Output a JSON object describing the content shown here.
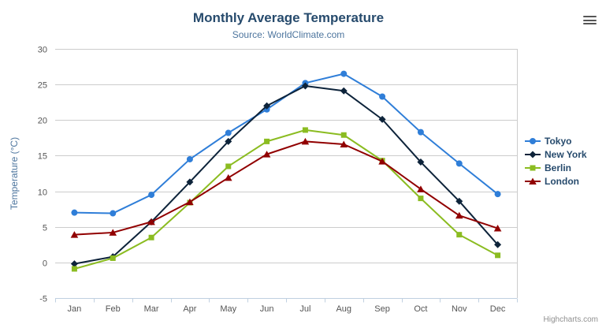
{
  "chart_data": {
    "type": "line",
    "title": "Monthly Average Temperature",
    "subtitle": "Source: WorldClimate.com",
    "categories": [
      "Jan",
      "Feb",
      "Mar",
      "Apr",
      "May",
      "Jun",
      "Jul",
      "Aug",
      "Sep",
      "Oct",
      "Nov",
      "Dec"
    ],
    "xlabel": "",
    "ylabel": "Temperature (°C)",
    "ylim": [
      -5,
      30
    ],
    "ytick_step": 5,
    "grid": true,
    "legend_position": "right",
    "series": [
      {
        "name": "Tokyo",
        "color": "#2f7ed8",
        "marker": "circle",
        "values": [
          7.0,
          6.9,
          9.5,
          14.5,
          18.2,
          21.5,
          25.2,
          26.5,
          23.3,
          18.3,
          13.9,
          9.6
        ]
      },
      {
        "name": "New York",
        "color": "#0d233a",
        "marker": "diamond",
        "values": [
          -0.2,
          0.8,
          5.7,
          11.3,
          17.0,
          22.0,
          24.8,
          24.1,
          20.1,
          14.1,
          8.6,
          2.5
        ]
      },
      {
        "name": "Berlin",
        "color": "#8bbc21",
        "marker": "square",
        "values": [
          -0.9,
          0.6,
          3.5,
          8.4,
          13.5,
          17.0,
          18.6,
          17.9,
          14.3,
          9.0,
          3.9,
          1.0
        ]
      },
      {
        "name": "London",
        "color": "#910000",
        "marker": "triangle",
        "values": [
          3.9,
          4.2,
          5.7,
          8.5,
          11.9,
          15.2,
          17.0,
          16.6,
          14.2,
          10.3,
          6.6,
          4.8
        ]
      }
    ]
  },
  "credits": {
    "label": "Highcharts.com"
  },
  "icons": {
    "menu": "hamburger-icon"
  },
  "colors": {
    "title": "#274b6d",
    "subtitle": "#4d759e",
    "axis_title": "#4d759e",
    "tick_label": "#555555",
    "grid_line": "#cccccc",
    "axis_line": "#c0d0e0",
    "legend_text": "#274b6d",
    "credits": "#909090"
  }
}
